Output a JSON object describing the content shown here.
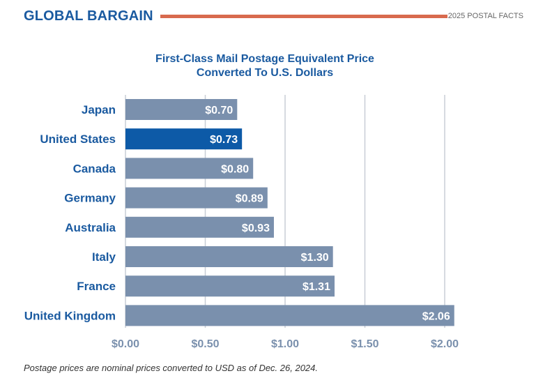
{
  "header": {
    "title": "GLOBAL BARGAIN",
    "right_label": "2025 POSTAL FACTS"
  },
  "footnote": "Postage prices are nominal prices converted to USD as of Dec. 26, 2024.",
  "colors": {
    "brand_blue": "#1a5aa0",
    "bar_default": "#7a90ad",
    "bar_highlight": "#0d5aa7",
    "rule_orange": "#d86a4e"
  },
  "chart_data": {
    "type": "bar",
    "orientation": "horizontal",
    "title": "First-Class Mail Postage Equivalent Price",
    "subtitle": "Converted To U.S. Dollars",
    "categories": [
      "Japan",
      "United States",
      "Canada",
      "Germany",
      "Australia",
      "Italy",
      "France",
      "United Kingdom"
    ],
    "values": [
      0.7,
      0.73,
      0.8,
      0.89,
      0.93,
      1.3,
      1.31,
      2.06
    ],
    "value_labels": [
      "$0.70",
      "$0.73",
      "$0.80",
      "$0.89",
      "$0.93",
      "$1.30",
      "$1.31",
      "$2.06"
    ],
    "highlight": "United States",
    "xlim": [
      0,
      2.0
    ],
    "xticks": [
      0,
      0.5,
      1.0,
      1.5,
      2.0
    ],
    "xtick_labels": [
      "$0.00",
      "$0.50",
      "$1.00",
      "$1.50",
      "$2.00"
    ],
    "grid": "vertical"
  }
}
